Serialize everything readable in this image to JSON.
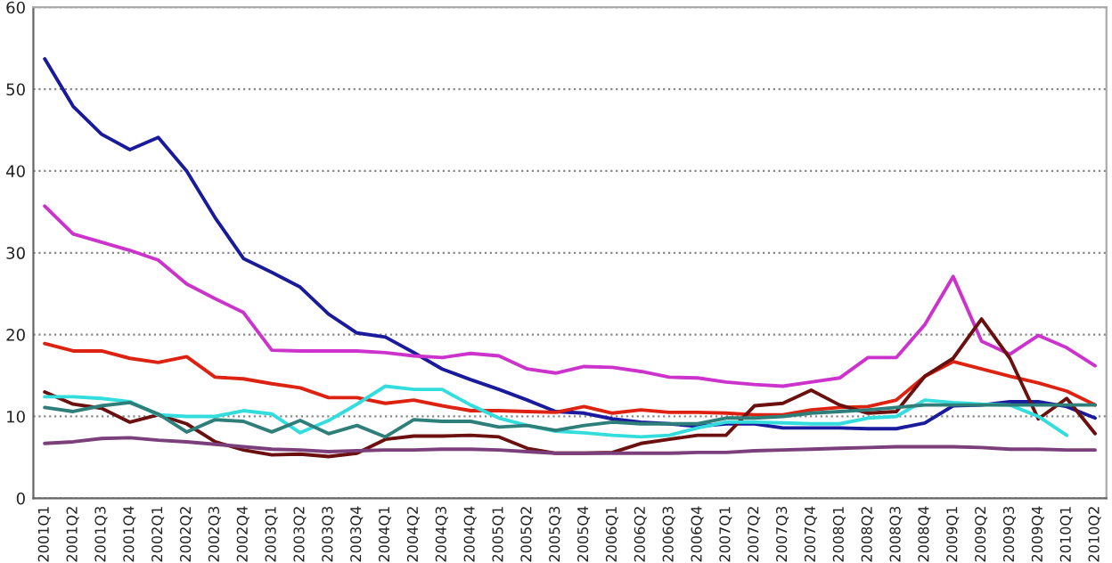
{
  "chart_data": {
    "type": "line",
    "categories": [
      "2001Q1",
      "2001Q2",
      "2001Q3",
      "2001Q4",
      "2002Q1",
      "2002Q2",
      "2002Q3",
      "2002Q4",
      "2003Q1",
      "2003Q2",
      "2003Q3",
      "2003Q4",
      "2004Q1",
      "2004Q2",
      "2004Q3",
      "2004Q4",
      "2005Q1",
      "2005Q2",
      "2005Q3",
      "2005Q4",
      "2006Q1",
      "2006Q2",
      "2006Q3",
      "2006Q4",
      "2007Q1",
      "2007Q2",
      "2007Q3",
      "2007Q4",
      "2008Q1",
      "2008Q2",
      "2008Q3",
      "2008Q4",
      "2009Q1",
      "2009Q2",
      "2009Q3",
      "2009Q4",
      "2010Q1",
      "2010Q2"
    ],
    "series": [
      {
        "color": "#1a1a9c",
        "values": [
          53.7,
          47.9,
          44.5,
          42.6,
          44.1,
          40.0,
          34.3,
          29.3,
          27.6,
          25.8,
          22.5,
          20.2,
          19.7,
          17.8,
          15.8,
          14.5,
          13.3,
          12.0,
          10.6,
          10.4,
          9.7,
          9.3,
          9.1,
          8.8,
          9.1,
          9.1,
          8.6,
          8.6,
          8.6,
          8.5,
          8.5,
          9.2,
          11.3,
          11.4,
          11.8,
          11.8,
          11.2,
          9.8
        ]
      },
      {
        "color": "#cc33cc",
        "values": [
          35.7,
          32.3,
          31.3,
          30.3,
          29.1,
          26.2,
          24.4,
          22.7,
          18.1,
          18.0,
          18.0,
          18.0,
          17.8,
          17.4,
          17.2,
          17.7,
          17.4,
          15.8,
          15.3,
          16.1,
          16.0,
          15.5,
          14.8,
          14.7,
          14.2,
          13.9,
          13.7,
          14.2,
          14.7,
          17.2,
          17.2,
          21.2,
          27.1,
          19.2,
          17.6,
          19.9,
          18.4,
          16.2
        ]
      },
      {
        "color": "#dd2211",
        "values": [
          18.9,
          18.0,
          18.0,
          17.1,
          16.6,
          17.3,
          14.8,
          14.6,
          14.0,
          13.5,
          12.3,
          12.3,
          11.6,
          12.0,
          11.3,
          10.7,
          10.7,
          10.6,
          10.5,
          11.2,
          10.4,
          10.8,
          10.5,
          10.5,
          10.4,
          10.2,
          10.2,
          10.8,
          11.1,
          11.2,
          12.0,
          14.9,
          16.7,
          15.8,
          14.9,
          14.1,
          13.1,
          11.4
        ]
      },
      {
        "color": "#6b0f0f",
        "values": [
          13.0,
          11.5,
          11.0,
          9.3,
          10.2,
          9.1,
          6.9,
          5.9,
          5.3,
          5.4,
          5.1,
          5.5,
          7.2,
          7.6,
          7.6,
          7.7,
          7.5,
          6.1,
          5.5,
          5.5,
          5.6,
          6.7,
          7.2,
          7.7,
          7.7,
          11.3,
          11.6,
          13.2,
          11.4,
          10.4,
          10.6,
          14.9,
          17.1,
          21.9,
          17.1,
          9.7,
          12.2,
          7.9
        ]
      },
      {
        "color": "#33dddd",
        "values": [
          12.4,
          12.4,
          12.2,
          11.8,
          10.2,
          10.0,
          10.0,
          10.7,
          10.3,
          8.0,
          9.5,
          11.5,
          13.7,
          13.3,
          13.3,
          11.4,
          9.8,
          8.9,
          8.2,
          8.0,
          7.7,
          7.5,
          7.7,
          8.6,
          9.3,
          9.3,
          9.2,
          9.1,
          9.1,
          9.8,
          10.0,
          12.0,
          11.7,
          11.5,
          11.4,
          10.0,
          7.7,
          null
        ]
      },
      {
        "color": "#2e7f7a",
        "values": [
          11.1,
          10.6,
          11.3,
          11.7,
          10.3,
          8.1,
          9.6,
          9.4,
          8.1,
          9.5,
          7.9,
          8.9,
          7.5,
          9.6,
          9.4,
          9.4,
          8.7,
          8.9,
          8.3,
          8.9,
          9.3,
          9.1,
          9.1,
          9.1,
          9.8,
          9.8,
          10.0,
          10.4,
          10.6,
          10.8,
          11.1,
          11.4,
          11.4,
          11.4,
          11.4,
          11.4,
          11.4,
          11.4
        ]
      },
      {
        "color": "#7b3f7b",
        "values": [
          6.7,
          6.9,
          7.3,
          7.4,
          7.1,
          6.9,
          6.6,
          6.3,
          6.0,
          5.9,
          5.7,
          5.8,
          5.9,
          5.9,
          6.0,
          6.0,
          5.9,
          5.7,
          5.5,
          5.5,
          5.5,
          5.5,
          5.5,
          5.6,
          5.6,
          5.8,
          5.9,
          6.0,
          6.1,
          6.2,
          6.3,
          6.3,
          6.3,
          6.2,
          6.0,
          6.0,
          5.9,
          5.9
        ]
      }
    ],
    "ylim": [
      0,
      60
    ],
    "yticks": [
      0,
      10,
      20,
      30,
      40,
      50,
      60
    ],
    "grid": "y",
    "legend": false,
    "marker": "none",
    "line_style": "solid"
  }
}
